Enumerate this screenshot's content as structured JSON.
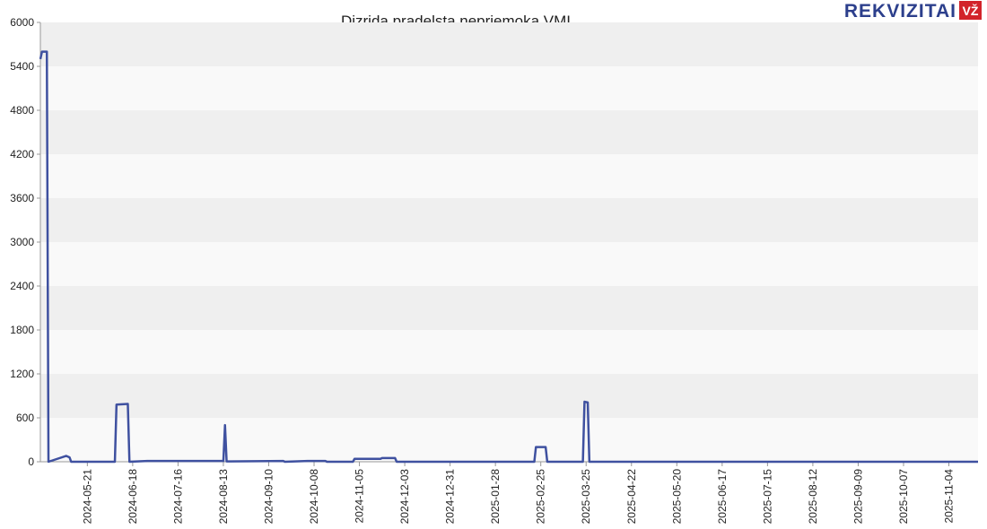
{
  "logo": {
    "brand": "REKVIZITAI",
    "badge": "VŽ"
  },
  "chart_data": {
    "type": "line",
    "title": "Dizrida pradelsta nepriemoka VMI",
    "x": [
      "2024-04-22",
      "2024-04-23",
      "2024-04-26",
      "2024-04-27",
      "2024-05-08",
      "2024-05-10",
      "2024-05-11",
      "2024-06-07",
      "2024-06-08",
      "2024-06-15",
      "2024-06-16",
      "2024-06-27",
      "2024-08-13",
      "2024-08-14",
      "2024-08-15",
      "2024-09-19",
      "2024-09-20",
      "2024-10-04",
      "2024-10-15",
      "2024-10-16",
      "2024-11-01",
      "2024-11-02",
      "2024-11-18",
      "2024-11-19",
      "2024-11-27",
      "2024-11-28",
      "2025-02-21",
      "2025-02-22",
      "2025-02-28",
      "2025-03-01",
      "2025-03-23",
      "2025-03-24",
      "2025-03-26",
      "2025-03-27",
      "2025-11-22"
    ],
    "series": [
      {
        "name": "Dizrida pradelsta nepriemoka VMI",
        "color": "#3f51a0",
        "values": [
          5500,
          5600,
          5600,
          0,
          80,
          60,
          0,
          0,
          780,
          790,
          0,
          10,
          10,
          500,
          5,
          10,
          0,
          10,
          10,
          0,
          0,
          40,
          40,
          50,
          50,
          0,
          0,
          200,
          200,
          0,
          0,
          820,
          810,
          0,
          0
        ]
      }
    ],
    "xlim": [
      "2024-04-22",
      "2025-11-22"
    ],
    "xticks": [
      "2024-05-21",
      "2024-06-18",
      "2024-07-16",
      "2024-08-13",
      "2024-09-10",
      "2024-10-08",
      "2024-11-05",
      "2024-12-03",
      "2024-12-31",
      "2025-01-28",
      "2025-02-25",
      "2025-03-25",
      "2025-04-22",
      "2025-05-20",
      "2025-06-17",
      "2025-07-15",
      "2025-08-12",
      "2025-09-09",
      "2025-10-07",
      "2025-11-04"
    ],
    "ylim": [
      0,
      6000
    ],
    "yticks": [
      0,
      600,
      1200,
      1800,
      2400,
      3000,
      3600,
      4200,
      4800,
      5400,
      6000
    ],
    "grid": "bands"
  }
}
